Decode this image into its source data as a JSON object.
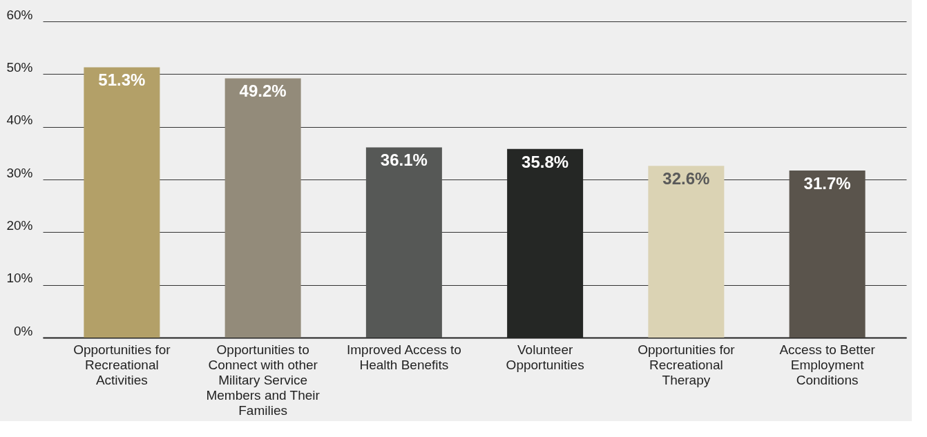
{
  "chart_data": {
    "type": "bar",
    "categories": [
      "Opportunities for Recreational Activities",
      "Opportunities to Connect with other Military Service Members and Their Families",
      "Improved Access to Health Benefits",
      "Volunteer Opportunities",
      "Opportunities for Recreational Therapy",
      "Access to Better Employment Conditions"
    ],
    "values": [
      51.3,
      49.2,
      36.1,
      35.8,
      32.6,
      31.7
    ],
    "colors": [
      "#b3a068",
      "#938b7a",
      "#565856",
      "#252725",
      "#dbd3b4",
      "#5a544c"
    ],
    "value_labels": [
      "51.3%",
      "49.2%",
      "36.1%",
      "35.8%",
      "32.6%",
      "31.7%"
    ],
    "ylim": [
      0,
      60
    ],
    "yticks": [
      {
        "value": 0,
        "label": "0%"
      },
      {
        "value": 10,
        "label": "10%"
      },
      {
        "value": 20,
        "label": "20%"
      },
      {
        "value": 30,
        "label": "30%"
      },
      {
        "value": 40,
        "label": "40%"
      },
      {
        "value": 50,
        "label": "50%"
      },
      {
        "value": 60,
        "label": "60%"
      }
    ],
    "grid": "y"
  }
}
